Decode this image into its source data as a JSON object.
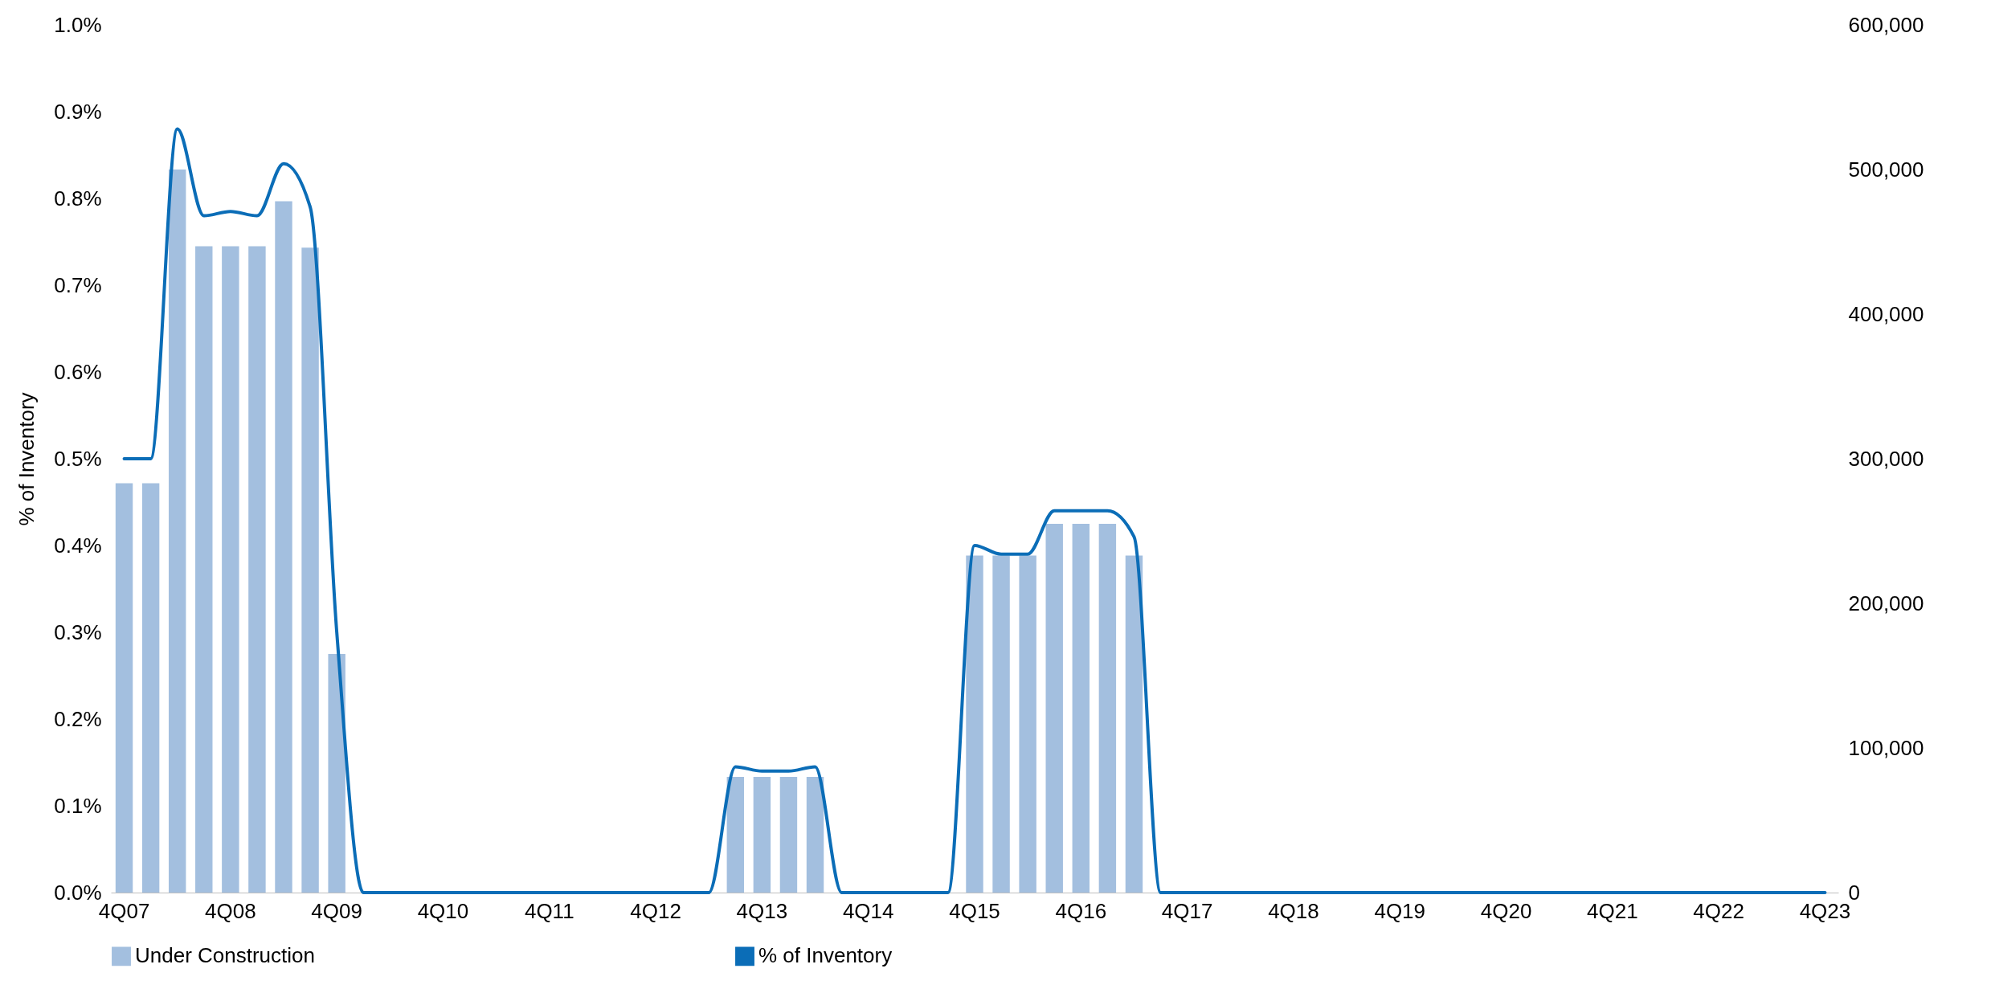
{
  "chart_data": {
    "type": "bar",
    "ylabel": "% of Inventory",
    "categories": [
      "4Q07",
      null,
      null,
      null,
      "4Q08",
      null,
      null,
      null,
      "4Q09",
      null,
      null,
      null,
      "4Q10",
      null,
      null,
      null,
      "4Q11",
      null,
      null,
      null,
      "4Q12",
      null,
      null,
      null,
      "4Q13",
      null,
      null,
      null,
      "4Q14",
      null,
      null,
      null,
      "4Q15",
      null,
      null,
      null,
      "4Q16",
      null,
      null,
      null,
      "4Q17",
      null,
      null,
      null,
      "4Q18",
      null,
      null,
      null,
      "4Q19",
      null,
      null,
      null,
      "4Q20",
      null,
      null,
      null,
      "4Q21",
      null,
      null,
      null,
      "4Q22",
      null,
      null,
      null,
      "4Q23"
    ],
    "series": [
      {
        "name": "Under Construction",
        "axis": "y2",
        "color": "#a3bfdf",
        "values": [
          283000,
          283000,
          500000,
          447000,
          447000,
          447000,
          478000,
          446000,
          165000,
          0,
          0,
          0,
          0,
          0,
          0,
          0,
          0,
          0,
          0,
          0,
          0,
          0,
          0,
          80000,
          80000,
          80000,
          80000,
          0,
          0,
          0,
          0,
          0,
          233000,
          233000,
          233000,
          255000,
          255000,
          255000,
          233000,
          0,
          0,
          0,
          0,
          0,
          0,
          0,
          0,
          0,
          0,
          0,
          0,
          0,
          0,
          0,
          0,
          0,
          0,
          0,
          0,
          0,
          0,
          0,
          0,
          0,
          0
        ]
      },
      {
        "name": "% of Inventory",
        "type": "line",
        "color": "#0b6db7",
        "values": [
          0.5,
          0.5,
          0.88,
          0.78,
          0.785,
          0.78,
          0.84,
          0.79,
          0.3,
          0,
          0,
          0,
          0,
          0,
          0,
          0,
          0,
          0,
          0,
          0,
          0,
          0,
          0,
          0.145,
          0.14,
          0.14,
          0.145,
          0,
          0,
          0,
          0,
          0,
          0.4,
          0.39,
          0.39,
          0.44,
          0.44,
          0.44,
          0.41,
          0,
          0,
          0,
          0,
          0,
          0,
          0,
          0,
          0,
          0,
          0,
          0,
          0,
          0,
          0,
          0,
          0,
          0,
          0,
          0,
          0,
          0,
          0,
          0,
          0,
          0
        ]
      }
    ],
    "ylim": [
      0,
      1
    ],
    "yticks": [
      {
        "value": 0,
        "label": "0.0%"
      },
      {
        "value": 0.1,
        "label": "0.1%"
      },
      {
        "value": 0.2,
        "label": "0.2%"
      },
      {
        "value": 0.3,
        "label": "0.3%"
      },
      {
        "value": 0.4,
        "label": "0.4%"
      },
      {
        "value": 0.5,
        "label": "0.5%"
      },
      {
        "value": 0.6,
        "label": "0.6%"
      },
      {
        "value": 0.7,
        "label": "0.7%"
      },
      {
        "value": 0.8,
        "label": "0.8%"
      },
      {
        "value": 0.9,
        "label": "0.9%"
      },
      {
        "value": 1,
        "label": "1.0%"
      }
    ],
    "y2lim": [
      0,
      600000
    ],
    "y2ticks": [
      {
        "value": 0,
        "label": "0"
      },
      {
        "value": 100000,
        "label": "100,000"
      },
      {
        "value": 200000,
        "label": "200,000"
      },
      {
        "value": 300000,
        "label": "300,000"
      },
      {
        "value": 400000,
        "label": "400,000"
      },
      {
        "value": 500000,
        "label": "500,000"
      },
      {
        "value": 600000,
        "label": "600,000"
      }
    ],
    "grid": false,
    "legend": "bottom"
  }
}
